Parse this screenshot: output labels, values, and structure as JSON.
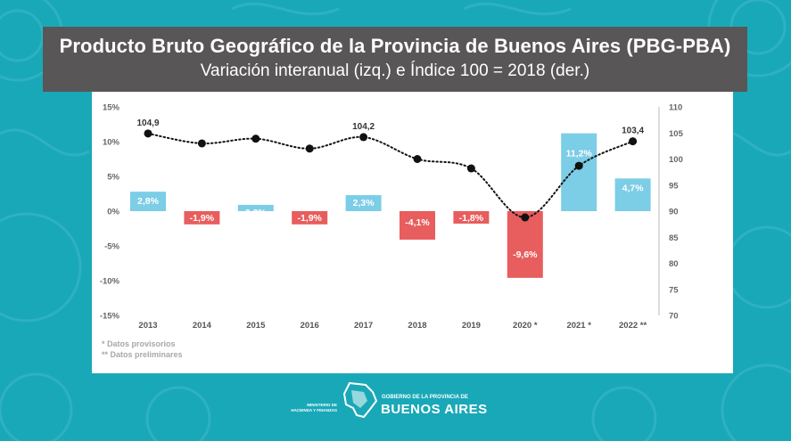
{
  "header": {
    "title": "Producto Bruto Geográfico de la Provincia de Buenos Aires (PBG-PBA)",
    "subtitle": "Variación interanual (izq.) e Índice 100 = 2018 (der.)"
  },
  "notes": {
    "provisional": "* Datos provisorios",
    "preliminary": "** Datos preliminares"
  },
  "footer": {
    "ministry_line1": "MINISTERIO DE",
    "ministry_line2": "HACIENDA Y FINANZAS",
    "gov_line": "GOBIERNO DE LA PROVINCIA DE",
    "gov_name": "BUENOS AIRES"
  },
  "colors": {
    "positive_bar": "#7ccde6",
    "negative_bar": "#e85d5d",
    "line": "#111111",
    "header_bg": "#585656",
    "background": "#19a8b8"
  },
  "chart_data": {
    "type": "bar",
    "categories": [
      "2013",
      "2014",
      "2015",
      "2016",
      "2017",
      "2018",
      "2019",
      "2020 *",
      "2021 *",
      "2022 **"
    ],
    "series": [
      {
        "type": "bar",
        "axis": "left",
        "values": [
          2.8,
          -1.9,
          0.9,
          -1.9,
          2.3,
          -4.1,
          -1.8,
          -9.6,
          11.2,
          4.7
        ],
        "labels": [
          "2,8%",
          "-1,9%",
          "0,9%",
          "-1,9%",
          "2,3%",
          "-4,1%",
          "-1,8%",
          "-9,6%",
          "11,2%",
          "4,7%"
        ]
      },
      {
        "type": "line",
        "style": "dotted",
        "axis": "right",
        "values": [
          104.9,
          103.0,
          103.9,
          102.0,
          104.2,
          100.0,
          98.2,
          88.8,
          98.7,
          103.4
        ],
        "labels": [
          "104,9",
          "",
          "",
          "",
          "104,2",
          "",
          "",
          "",
          "",
          "103,4"
        ]
      }
    ],
    "y_left": {
      "ticks": [
        15,
        10,
        5,
        0,
        -5,
        -10,
        -15
      ],
      "tick_labels": [
        "15%",
        "10%",
        "5%",
        "0%",
        "-5%",
        "-10%",
        "-15%"
      ],
      "range": [
        -15,
        15
      ]
    },
    "y_right": {
      "ticks": [
        110,
        105,
        100,
        95,
        90,
        85,
        80,
        75,
        70
      ],
      "tick_labels": [
        "110",
        "105",
        "100",
        "95",
        "90",
        "85",
        "80",
        "75",
        "70"
      ],
      "range": [
        70,
        110
      ]
    },
    "grid": false,
    "legend": "none"
  }
}
